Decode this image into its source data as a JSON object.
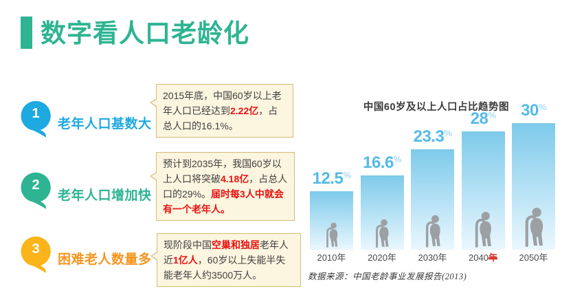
{
  "theme": {
    "teal": "#2eb493",
    "blue": "#1fa9e1",
    "yellow": "#fbb41a",
    "orange": "#f7941e",
    "red": "#e8120f",
    "box_bg": "#fcf5e0",
    "box_border": "#d3bb74",
    "body_text": "#3f3f3f",
    "bar_top": "#7ecaea",
    "bar_bottom": "#eaf7fd",
    "value_blue": "#53bbe8",
    "pct_blue": "#abdcf3",
    "icon_gray": "#9da0a3",
    "year_text": "#4a4a4a",
    "mark_red": "#d6352b"
  },
  "header": {
    "title": "数字看人口老龄化"
  },
  "items": [
    {
      "number": "1",
      "label": "老年人口基数大",
      "bubble_color": "#1fa9e1",
      "label_color": "#1fa9e1",
      "note_segments": [
        {
          "text": "2015年底，中国60岁以上老年人口已经达到",
          "em": false
        },
        {
          "text": "2.22亿",
          "em": true
        },
        {
          "text": "，占总人口的16.1%。",
          "em": false
        }
      ]
    },
    {
      "number": "2",
      "label": "老年人口增加快",
      "bubble_color": "#2eb493",
      "label_color": "#2eb493",
      "note_segments": [
        {
          "text": "预计到2035年，我国60岁以上人口将突破",
          "em": false
        },
        {
          "text": "4.18亿",
          "em": true
        },
        {
          "text": "，占总人口的29%。",
          "em": false
        },
        {
          "text": "届时每3人中就会有一个老年人。",
          "em": true
        }
      ]
    },
    {
      "number": "3",
      "label": "困难老人数量多",
      "bubble_color": "#fbb41a",
      "label_color": "#f7941e",
      "note_segments": [
        {
          "text": "现阶段中国",
          "em": false
        },
        {
          "text": "空巢和独居",
          "em": true
        },
        {
          "text": "老年人近",
          "em": false
        },
        {
          "text": "1亿人",
          "em": true
        },
        {
          "text": "，60岁以上失能半失能老年人约3500万人。",
          "em": false
        }
      ]
    }
  ],
  "chart_data": {
    "type": "bar",
    "title": "中国60岁及以上人口占比趋势图",
    "categories": [
      "2010年",
      "2020年",
      "2030年",
      "2040年",
      "2050年"
    ],
    "values": [
      12.5,
      16.6,
      23.3,
      28,
      30
    ],
    "value_labels": [
      "12.5",
      "16.6",
      "23.3",
      "28",
      "30"
    ],
    "unit": "%",
    "xlabel": "",
    "ylabel": "",
    "ylim": [
      0,
      30
    ],
    "grid": false,
    "legend": "none",
    "marked_category_index": 3,
    "source": "数据来源：中国老龄事业发展报告(2013)"
  }
}
